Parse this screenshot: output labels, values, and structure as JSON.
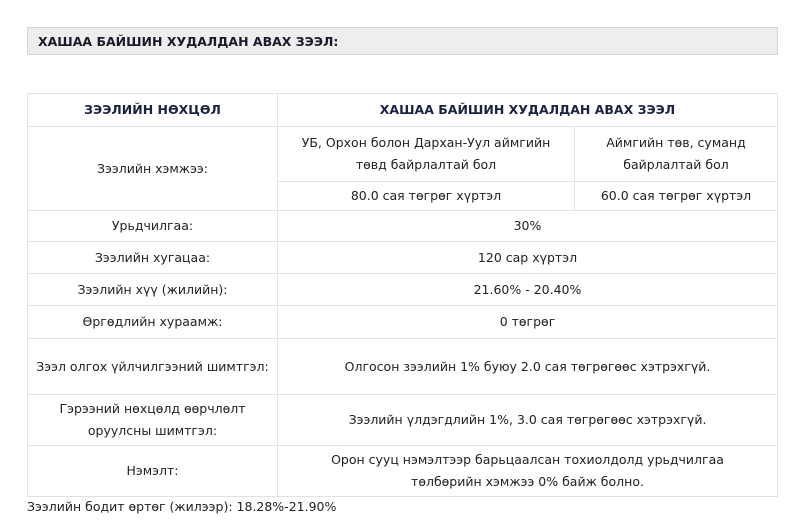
{
  "section_title": "ХАШАА БАЙШИН ХУДАЛДАН АВАХ ЗЭЭЛ:",
  "table": {
    "headers": [
      "ЗЭЭЛИЙН НӨХЦӨЛ",
      "ХАШАА БАЙШИН ХУДАЛДАН АВАХ ЗЭЭЛ"
    ],
    "loan_size": {
      "label": "Зээлийн хэмжээ:",
      "location_a": "УБ, Орхон болон Дархан-Уул аймгийн төвд байрлалтай бол",
      "location_b": "Аймгийн төв, суманд байрлалтай бол",
      "amount_a": "80.0 сая төгрөг хүртэл",
      "amount_b": "60.0 сая төгрөг хүртэл"
    },
    "rows": [
      {
        "label": "Урьдчилгаа:",
        "value": "30%"
      },
      {
        "label": "Зээлийн хугацаа:",
        "value": "120 сар хүртэл"
      },
      {
        "label": "Зээлийн хүү (жилийн):",
        "value": "21.60% - 20.40%"
      },
      {
        "label": "Өргөдлийн хураамж:",
        "value": "0 төгрөг"
      },
      {
        "label": "Зээл олгох үйлчилгээний шимтгэл:",
        "value": "Олгосон зээлийн 1% буюу 2.0 сая төгрөгөөс хэтрэхгүй."
      },
      {
        "label": "Гэрээний нөхцөлд өөрчлөлт оруулсны шимтгэл:",
        "value": "Зээлийн үлдэгдлийн 1%, 3.0 сая төгрөгөөс хэтрэхгүй."
      },
      {
        "label": "Нэмэлт:",
        "value": "Орон сууц нэмэлтээр барьцаалсан тохиолдолд урьдчилгаа төлбөрийн хэмжээ 0% байж болно."
      }
    ]
  },
  "footer_note": "Зээлийн бодит өртөг (жилээр): 18.28%-21.90%"
}
